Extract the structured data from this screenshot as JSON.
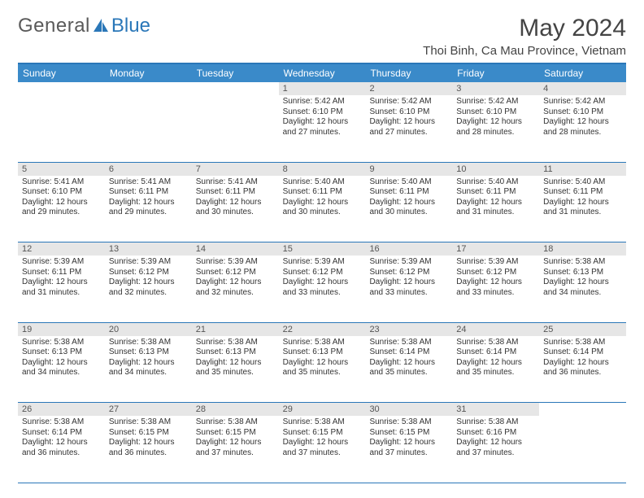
{
  "brand": {
    "part1": "General",
    "part2": "Blue"
  },
  "title": "May 2024",
  "location": "Thoi Binh, Ca Mau Province, Vietnam",
  "colors": {
    "header_bar": "#3a8ac9",
    "border": "#2a77b8",
    "daynum_bg": "#e6e6e6",
    "text": "#333333",
    "brand_gray": "#5a5a5a",
    "brand_blue": "#2a77b8"
  },
  "typography": {
    "title_fontsize": 30,
    "location_fontsize": 15,
    "dow_fontsize": 12,
    "cell_fontsize": 10,
    "daynum_fontsize": 11
  },
  "days_of_week": [
    "Sunday",
    "Monday",
    "Tuesday",
    "Wednesday",
    "Thursday",
    "Friday",
    "Saturday"
  ],
  "labels": {
    "sunrise_prefix": "Sunrise: ",
    "sunset_prefix": "Sunset: ",
    "daylight_prefix": "Daylight: "
  },
  "weeks": [
    [
      {
        "empty": true
      },
      {
        "empty": true
      },
      {
        "empty": true
      },
      {
        "day": "1",
        "sunrise": "5:42 AM",
        "sunset": "6:10 PM",
        "daylight": "12 hours and 27 minutes."
      },
      {
        "day": "2",
        "sunrise": "5:42 AM",
        "sunset": "6:10 PM",
        "daylight": "12 hours and 27 minutes."
      },
      {
        "day": "3",
        "sunrise": "5:42 AM",
        "sunset": "6:10 PM",
        "daylight": "12 hours and 28 minutes."
      },
      {
        "day": "4",
        "sunrise": "5:42 AM",
        "sunset": "6:10 PM",
        "daylight": "12 hours and 28 minutes."
      }
    ],
    [
      {
        "day": "5",
        "sunrise": "5:41 AM",
        "sunset": "6:10 PM",
        "daylight": "12 hours and 29 minutes."
      },
      {
        "day": "6",
        "sunrise": "5:41 AM",
        "sunset": "6:11 PM",
        "daylight": "12 hours and 29 minutes."
      },
      {
        "day": "7",
        "sunrise": "5:41 AM",
        "sunset": "6:11 PM",
        "daylight": "12 hours and 30 minutes."
      },
      {
        "day": "8",
        "sunrise": "5:40 AM",
        "sunset": "6:11 PM",
        "daylight": "12 hours and 30 minutes."
      },
      {
        "day": "9",
        "sunrise": "5:40 AM",
        "sunset": "6:11 PM",
        "daylight": "12 hours and 30 minutes."
      },
      {
        "day": "10",
        "sunrise": "5:40 AM",
        "sunset": "6:11 PM",
        "daylight": "12 hours and 31 minutes."
      },
      {
        "day": "11",
        "sunrise": "5:40 AM",
        "sunset": "6:11 PM",
        "daylight": "12 hours and 31 minutes."
      }
    ],
    [
      {
        "day": "12",
        "sunrise": "5:39 AM",
        "sunset": "6:11 PM",
        "daylight": "12 hours and 31 minutes."
      },
      {
        "day": "13",
        "sunrise": "5:39 AM",
        "sunset": "6:12 PM",
        "daylight": "12 hours and 32 minutes."
      },
      {
        "day": "14",
        "sunrise": "5:39 AM",
        "sunset": "6:12 PM",
        "daylight": "12 hours and 32 minutes."
      },
      {
        "day": "15",
        "sunrise": "5:39 AM",
        "sunset": "6:12 PM",
        "daylight": "12 hours and 33 minutes."
      },
      {
        "day": "16",
        "sunrise": "5:39 AM",
        "sunset": "6:12 PM",
        "daylight": "12 hours and 33 minutes."
      },
      {
        "day": "17",
        "sunrise": "5:39 AM",
        "sunset": "6:12 PM",
        "daylight": "12 hours and 33 minutes."
      },
      {
        "day": "18",
        "sunrise": "5:38 AM",
        "sunset": "6:13 PM",
        "daylight": "12 hours and 34 minutes."
      }
    ],
    [
      {
        "day": "19",
        "sunrise": "5:38 AM",
        "sunset": "6:13 PM",
        "daylight": "12 hours and 34 minutes."
      },
      {
        "day": "20",
        "sunrise": "5:38 AM",
        "sunset": "6:13 PM",
        "daylight": "12 hours and 34 minutes."
      },
      {
        "day": "21",
        "sunrise": "5:38 AM",
        "sunset": "6:13 PM",
        "daylight": "12 hours and 35 minutes."
      },
      {
        "day": "22",
        "sunrise": "5:38 AM",
        "sunset": "6:13 PM",
        "daylight": "12 hours and 35 minutes."
      },
      {
        "day": "23",
        "sunrise": "5:38 AM",
        "sunset": "6:14 PM",
        "daylight": "12 hours and 35 minutes."
      },
      {
        "day": "24",
        "sunrise": "5:38 AM",
        "sunset": "6:14 PM",
        "daylight": "12 hours and 35 minutes."
      },
      {
        "day": "25",
        "sunrise": "5:38 AM",
        "sunset": "6:14 PM",
        "daylight": "12 hours and 36 minutes."
      }
    ],
    [
      {
        "day": "26",
        "sunrise": "5:38 AM",
        "sunset": "6:14 PM",
        "daylight": "12 hours and 36 minutes."
      },
      {
        "day": "27",
        "sunrise": "5:38 AM",
        "sunset": "6:15 PM",
        "daylight": "12 hours and 36 minutes."
      },
      {
        "day": "28",
        "sunrise": "5:38 AM",
        "sunset": "6:15 PM",
        "daylight": "12 hours and 37 minutes."
      },
      {
        "day": "29",
        "sunrise": "5:38 AM",
        "sunset": "6:15 PM",
        "daylight": "12 hours and 37 minutes."
      },
      {
        "day": "30",
        "sunrise": "5:38 AM",
        "sunset": "6:15 PM",
        "daylight": "12 hours and 37 minutes."
      },
      {
        "day": "31",
        "sunrise": "5:38 AM",
        "sunset": "6:16 PM",
        "daylight": "12 hours and 37 minutes."
      },
      {
        "empty": true
      }
    ]
  ]
}
